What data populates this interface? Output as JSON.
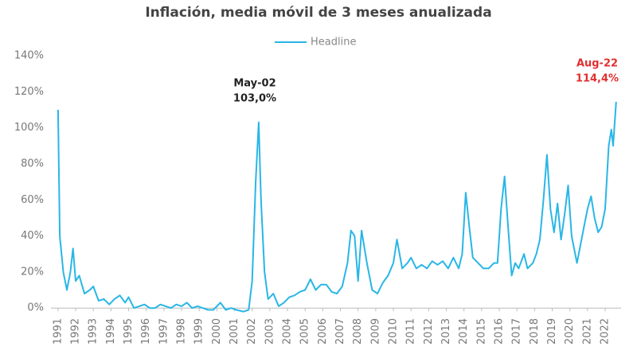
{
  "chart_data": {
    "type": "line",
    "title": "Inflación, media móvil de 3 meses anualizada",
    "series": [
      {
        "name": "Headline",
        "color": "#29b6e6",
        "x": [
          1991.0,
          1991.1,
          1991.3,
          1991.5,
          1991.7,
          1991.85,
          1992.0,
          1992.2,
          1992.5,
          1992.8,
          1993.0,
          1993.3,
          1993.6,
          1993.9,
          1994.2,
          1994.5,
          1994.8,
          1995.0,
          1995.3,
          1995.6,
          1995.9,
          1996.2,
          1996.5,
          1996.8,
          1997.1,
          1997.4,
          1997.7,
          1998.0,
          1998.3,
          1998.6,
          1998.9,
          1999.2,
          1999.5,
          1999.8,
          2000.2,
          2000.5,
          2000.8,
          2001.1,
          2001.5,
          2001.8,
          2002.0,
          2002.2,
          2002.37,
          2002.5,
          2002.7,
          2002.9,
          2003.2,
          2003.5,
          2003.8,
          2004.1,
          2004.4,
          2004.7,
          2005.0,
          2005.3,
          2005.6,
          2005.9,
          2006.2,
          2006.5,
          2006.8,
          2007.1,
          2007.4,
          2007.6,
          2007.8,
          2008.0,
          2008.2,
          2008.5,
          2008.8,
          2009.1,
          2009.4,
          2009.7,
          2010.0,
          2010.2,
          2010.5,
          2010.8,
          2011.0,
          2011.3,
          2011.6,
          2011.9,
          2012.2,
          2012.5,
          2012.8,
          2013.1,
          2013.4,
          2013.7,
          2013.9,
          2014.1,
          2014.3,
          2014.5,
          2014.8,
          2015.1,
          2015.4,
          2015.7,
          2015.9,
          2016.1,
          2016.3,
          2016.5,
          2016.7,
          2016.9,
          2017.1,
          2017.4,
          2017.6,
          2017.9,
          2018.1,
          2018.3,
          2018.5,
          2018.7,
          2018.9,
          2019.1,
          2019.3,
          2019.5,
          2019.7,
          2019.9,
          2020.1,
          2020.4,
          2020.6,
          2020.8,
          2021.0,
          2021.2,
          2021.4,
          2021.6,
          2021.8,
          2022.0,
          2022.2,
          2022.35,
          2022.45,
          2022.62
        ],
        "values": [
          110,
          40,
          20,
          10,
          20,
          33,
          15,
          18,
          8,
          10,
          12,
          4,
          5,
          2,
          5,
          7,
          3,
          6,
          0,
          1,
          2,
          0,
          0,
          2,
          1,
          0,
          2,
          1,
          3,
          0,
          1,
          0,
          -1,
          -1,
          3,
          -1,
          0,
          -1,
          -2,
          -1,
          15,
          70,
          103,
          60,
          20,
          5,
          8,
          1,
          3,
          6,
          7,
          9,
          10,
          16,
          10,
          13,
          13,
          9,
          8,
          12,
          25,
          43,
          40,
          15,
          43,
          25,
          10,
          8,
          14,
          18,
          25,
          38,
          22,
          25,
          28,
          22,
          24,
          22,
          26,
          24,
          26,
          22,
          28,
          22,
          30,
          64,
          45,
          28,
          25,
          22,
          22,
          25,
          25,
          55,
          73,
          45,
          18,
          25,
          22,
          30,
          22,
          25,
          30,
          38,
          60,
          85,
          55,
          42,
          58,
          38,
          52,
          68,
          40,
          25,
          35,
          45,
          55,
          62,
          50,
          42,
          45,
          55,
          90,
          99,
          90,
          114.4
        ]
      }
    ],
    "annotations": [
      {
        "lines": [
          "May-02",
          "103,0%"
        ],
        "color": "#222222"
      },
      {
        "lines": [
          "Aug-22",
          "114,4%"
        ],
        "color": "#e03030"
      }
    ],
    "xlim": [
      1990.6,
      2022.9
    ],
    "xticks": [
      1991,
      1992,
      1993,
      1994,
      1995,
      1996,
      1997,
      1998,
      1999,
      2000,
      2001,
      2002,
      2003,
      2004,
      2005,
      2006,
      2007,
      2008,
      2009,
      2010,
      2011,
      2012,
      2013,
      2014,
      2015,
      2016,
      2017,
      2018,
      2019,
      2020,
      2021,
      2022
    ],
    "ylim": [
      -3,
      140
    ],
    "yticks": [
      {
        "value": 0,
        "label": "0%"
      },
      {
        "value": 20,
        "label": "20%"
      },
      {
        "value": 40,
        "label": "40%"
      },
      {
        "value": 60,
        "label": "60%"
      },
      {
        "value": 80,
        "label": "80%"
      },
      {
        "value": 100,
        "label": "100%"
      },
      {
        "value": 120,
        "label": "120%"
      },
      {
        "value": 140,
        "label": "140%"
      }
    ],
    "legend": "top"
  }
}
